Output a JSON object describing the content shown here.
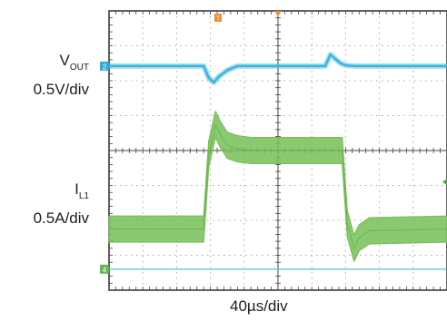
{
  "chart_data": {
    "type": "line",
    "title": "",
    "xlabel": "40µs/div",
    "ylabel": "",
    "grid": true,
    "divisions": {
      "x": 10,
      "y": 8
    },
    "series": [
      {
        "label": "V",
        "label_sub": "OUT",
        "scale": "0.5V/div",
        "channel_marker": "2",
        "color": "#3cb4e0",
        "x": [
          0,
          2.8,
          2.95,
          3.1,
          3.25,
          3.5,
          3.8,
          6.4,
          6.55,
          6.7,
          6.85,
          7.0,
          7.3,
          10
        ],
        "y": [
          6.42,
          6.42,
          6.08,
          5.95,
          6.12,
          6.3,
          6.42,
          6.42,
          6.75,
          6.62,
          6.5,
          6.44,
          6.42,
          6.42
        ]
      },
      {
        "label": "I",
        "label_sub": "L1",
        "scale": "0.5A/div",
        "channel_marker": "4",
        "color": "#77bf58",
        "x": [
          0,
          2.8,
          2.95,
          3.15,
          3.3,
          3.5,
          3.8,
          4.2,
          6.9,
          7.05,
          7.25,
          7.4,
          7.7,
          10
        ],
        "y": [
          1.75,
          1.75,
          3.9,
          4.75,
          4.45,
          4.15,
          4.05,
          4.0,
          4.0,
          1.9,
          1.2,
          1.5,
          1.7,
          1.75
        ],
        "ripple_band": 0.75
      }
    ],
    "trigger_marker": "T"
  }
}
